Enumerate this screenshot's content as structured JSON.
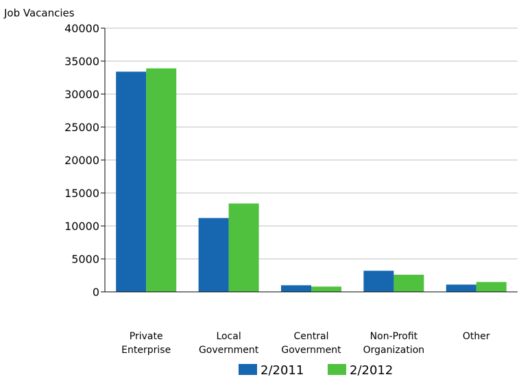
{
  "chart_data": {
    "type": "bar",
    "ylabel": "Job Vacancies",
    "ylim": [
      0,
      40000
    ],
    "yticks": [
      0,
      5000,
      10000,
      15000,
      20000,
      25000,
      30000,
      35000,
      40000
    ],
    "grid": true,
    "legend_position": "bottom",
    "categories": [
      [
        "Private",
        "Enterprise"
      ],
      [
        "Local",
        "Government"
      ],
      [
        "Central",
        "Government"
      ],
      [
        "Non-Profit",
        "Organization"
      ],
      [
        "Other"
      ]
    ],
    "series": [
      {
        "name": "2/2011",
        "color": "#1666b0",
        "values": [
          33400,
          11200,
          1000,
          3200,
          1100
        ]
      },
      {
        "name": "2/2012",
        "color": "#50c03f",
        "values": [
          33900,
          13400,
          800,
          2600,
          1500
        ]
      }
    ]
  }
}
